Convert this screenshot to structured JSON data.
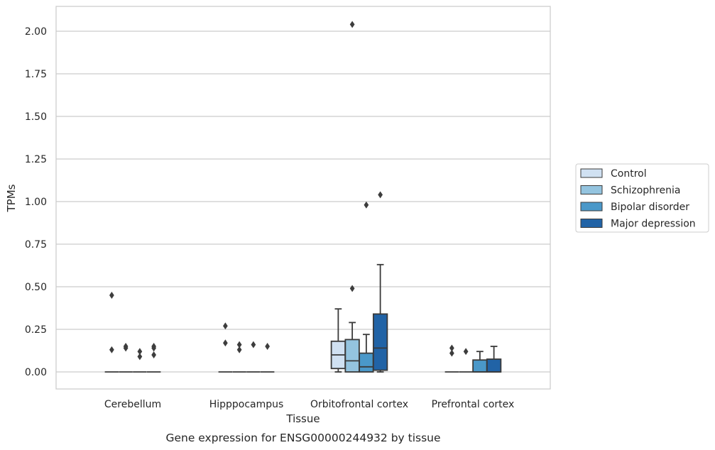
{
  "chart_data": {
    "type": "boxplot",
    "title": "Gene expression for ENSG00000244932 by tissue",
    "xlabel": "Tissue",
    "ylabel": "TPMs",
    "ylim": [
      -0.1,
      2.15
    ],
    "yticks": [
      0.0,
      0.25,
      0.5,
      0.75,
      1.0,
      1.25,
      1.5,
      1.75,
      2.0
    ],
    "ytick_labels": [
      "0.00",
      "0.25",
      "0.50",
      "0.75",
      "1.00",
      "1.25",
      "1.50",
      "1.75",
      "2.00"
    ],
    "grid": "horizontal",
    "legend_position": "right",
    "categories": [
      "Cerebellum",
      "Hipppocampus",
      "Orbitofrontal cortex",
      "Prefrontal cortex"
    ],
    "series": [
      {
        "name": "Control",
        "color": "#d0e1f2",
        "boxes": [
          {
            "q1": 0,
            "median": 0,
            "q3": 0,
            "whisker_low": 0,
            "whisker_high": 0,
            "outliers": [
              0.45,
              0.13
            ]
          },
          {
            "q1": 0,
            "median": 0,
            "q3": 0,
            "whisker_low": 0,
            "whisker_high": 0,
            "outliers": [
              0.27,
              0.17
            ]
          },
          {
            "q1": 0.02,
            "median": 0.1,
            "q3": 0.18,
            "whisker_low": 0.0,
            "whisker_high": 0.37,
            "outliers": []
          },
          {
            "q1": 0,
            "median": 0,
            "q3": 0,
            "whisker_low": 0,
            "whisker_high": 0,
            "outliers": [
              0.14,
              0.11
            ]
          }
        ]
      },
      {
        "name": "Schizophrenia",
        "color": "#94c4df",
        "boxes": [
          {
            "q1": 0,
            "median": 0,
            "q3": 0,
            "whisker_low": 0,
            "whisker_high": 0,
            "outliers": [
              0.15,
              0.14
            ]
          },
          {
            "q1": 0,
            "median": 0,
            "q3": 0,
            "whisker_low": 0,
            "whisker_high": 0,
            "outliers": [
              0.16,
              0.13
            ]
          },
          {
            "q1": 0.0,
            "median": 0.065,
            "q3": 0.19,
            "whisker_low": 0.0,
            "whisker_high": 0.29,
            "outliers": [
              2.04,
              0.49
            ]
          },
          {
            "q1": 0,
            "median": 0,
            "q3": 0,
            "whisker_low": 0,
            "whisker_high": 0,
            "outliers": [
              0.12
            ]
          }
        ]
      },
      {
        "name": "Bipolar disorder",
        "color": "#4a98c9",
        "boxes": [
          {
            "q1": 0,
            "median": 0,
            "q3": 0,
            "whisker_low": 0,
            "whisker_high": 0,
            "outliers": [
              0.12,
              0.09
            ]
          },
          {
            "q1": 0,
            "median": 0,
            "q3": 0,
            "whisker_low": 0,
            "whisker_high": 0,
            "outliers": [
              0.16
            ]
          },
          {
            "q1": 0.0,
            "median": 0.03,
            "q3": 0.11,
            "whisker_low": 0.0,
            "whisker_high": 0.22,
            "outliers": [
              0.98
            ]
          },
          {
            "q1": 0.0,
            "median": 0.0,
            "q3": 0.07,
            "whisker_low": 0.0,
            "whisker_high": 0.12,
            "outliers": []
          }
        ]
      },
      {
        "name": "Major depression",
        "color": "#2163a6",
        "boxes": [
          {
            "q1": 0,
            "median": 0,
            "q3": 0,
            "whisker_low": 0,
            "whisker_high": 0,
            "outliers": [
              0.15,
              0.14,
              0.1
            ]
          },
          {
            "q1": 0,
            "median": 0,
            "q3": 0,
            "whisker_low": 0,
            "whisker_high": 0,
            "outliers": [
              0.15
            ]
          },
          {
            "q1": 0.01,
            "median": 0.14,
            "q3": 0.34,
            "whisker_low": 0.0,
            "whisker_high": 0.63,
            "outliers": [
              1.04
            ]
          },
          {
            "q1": 0.0,
            "median": 0.0,
            "q3": 0.075,
            "whisker_low": 0.0,
            "whisker_high": 0.15,
            "outliers": []
          }
        ]
      }
    ]
  }
}
